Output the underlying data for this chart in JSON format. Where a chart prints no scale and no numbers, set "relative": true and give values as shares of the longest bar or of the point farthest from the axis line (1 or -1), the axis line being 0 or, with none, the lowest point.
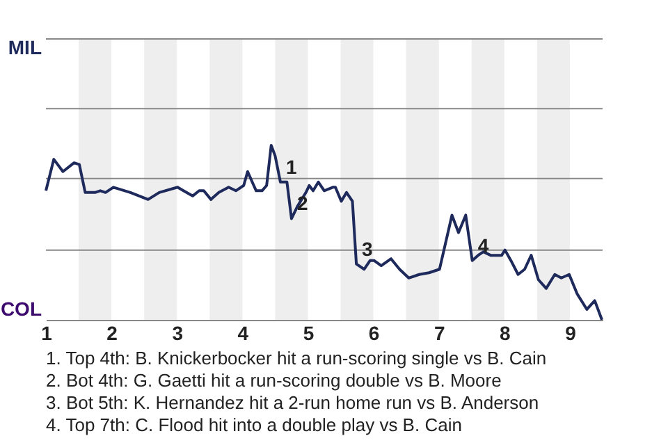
{
  "chart_data": {
    "type": "line",
    "relative": true,
    "x": [
      1,
      1.12,
      1.26,
      1.43,
      1.51,
      1.6,
      1.75,
      1.83,
      1.91,
      2.03,
      2.29,
      2.56,
      2.73,
      3.01,
      3.1,
      3.24,
      3.34,
      3.41,
      3.52,
      3.64,
      3.79,
      3.9,
      4.02,
      4.08,
      4.15,
      4.21,
      4.3,
      4.37,
      4.44,
      4.5,
      4.58,
      4.68,
      4.75,
      4.84,
      4.97,
      5.02,
      5.08,
      5.16,
      5.25,
      5.38,
      5.42,
      5.51,
      5.59,
      5.68,
      5.74,
      5.86,
      5.95,
      6.01,
      6.12,
      6.27,
      6.4,
      6.54,
      6.7,
      6.85,
      7.01,
      7.2,
      7.3,
      7.41,
      7.51,
      7.6,
      7.68,
      7.79,
      7.96,
      8.01,
      8.1,
      8.21,
      8.31,
      8.41,
      8.52,
      8.64,
      8.77,
      8.87,
      8.99,
      9.11,
      9.26,
      9.38,
      9.49
    ],
    "series": [
      {
        "color": "#1f2a5c",
        "values": [
          0.74,
          0.92,
          0.85,
          0.9,
          0.89,
          0.73,
          0.73,
          0.74,
          0.73,
          0.76,
          0.73,
          0.69,
          0.73,
          0.76,
          0.74,
          0.71,
          0.74,
          0.74,
          0.69,
          0.73,
          0.76,
          0.74,
          0.77,
          0.85,
          0.79,
          0.74,
          0.74,
          0.77,
          1,
          0.94,
          0.79,
          0.79,
          0.58,
          0.65,
          0.73,
          0.77,
          0.74,
          0.79,
          0.74,
          0.76,
          0.76,
          0.68,
          0.73,
          0.68,
          0.32,
          0.29,
          0.34,
          0.34,
          0.31,
          0.35,
          0.29,
          0.24,
          0.26,
          0.27,
          0.29,
          0.6,
          0.5,
          0.6,
          0.34,
          0.37,
          0.39,
          0.37,
          0.37,
          0.4,
          0.34,
          0.26,
          0.29,
          0.37,
          0.23,
          0.18,
          0.26,
          0.24,
          0.26,
          0.15,
          0.06,
          0.11,
          0
        ]
      }
    ],
    "xlim": [
      1,
      9.5
    ],
    "xticks": [
      1,
      2,
      3,
      4,
      5,
      6,
      7,
      8,
      9
    ],
    "marker": "none",
    "line_style": "solid",
    "ref_lines": [
      {
        "axis": "y",
        "value": 0.4,
        "color": "#888888"
      },
      {
        "axis": "y",
        "value": 0.81,
        "color": "#888888"
      },
      {
        "axis": "y",
        "value": 1.21,
        "color": "#888888"
      },
      {
        "axis": "y",
        "value": 1.61,
        "color": "#888888"
      }
    ],
    "bands": [
      {
        "axis": "x",
        "from": 1.5,
        "to": 2,
        "color": "#eeeeee"
      },
      {
        "axis": "x",
        "from": 2.5,
        "to": 3,
        "color": "#eeeeee"
      },
      {
        "axis": "x",
        "from": 3.5,
        "to": 4,
        "color": "#eeeeee"
      },
      {
        "axis": "x",
        "from": 4.5,
        "to": 5,
        "color": "#eeeeee"
      },
      {
        "axis": "x",
        "from": 5.5,
        "to": 6,
        "color": "#eeeeee"
      },
      {
        "axis": "x",
        "from": 6.5,
        "to": 7,
        "color": "#eeeeee"
      },
      {
        "axis": "x",
        "from": 7.5,
        "to": 8,
        "color": "#eeeeee"
      },
      {
        "axis": "x",
        "from": 8.5,
        "to": 9,
        "color": "#eeeeee"
      }
    ],
    "annotations": [
      "MIL",
      "COL",
      {
        "text": "1",
        "x": 4.58,
        "y": 0.79
      },
      {
        "text": "2",
        "x": 4.75,
        "y": 0.58
      },
      {
        "text": "3",
        "x": 5.74,
        "y": 0.32
      },
      {
        "text": "4",
        "x": 7.51,
        "y": 0.34
      },
      "1. Top 4th: B. Knickerbocker hit a run-scoring single vs B. Cain",
      "2. Bot 4th: G. Gaetti hit a run-scoring double vs B. Moore",
      "3. Bot 5th: K. Hernandez hit a 2-run home run vs B. Anderson",
      "4. Top 7th: C. Flood hit into a double play vs B. Cain"
    ]
  }
}
